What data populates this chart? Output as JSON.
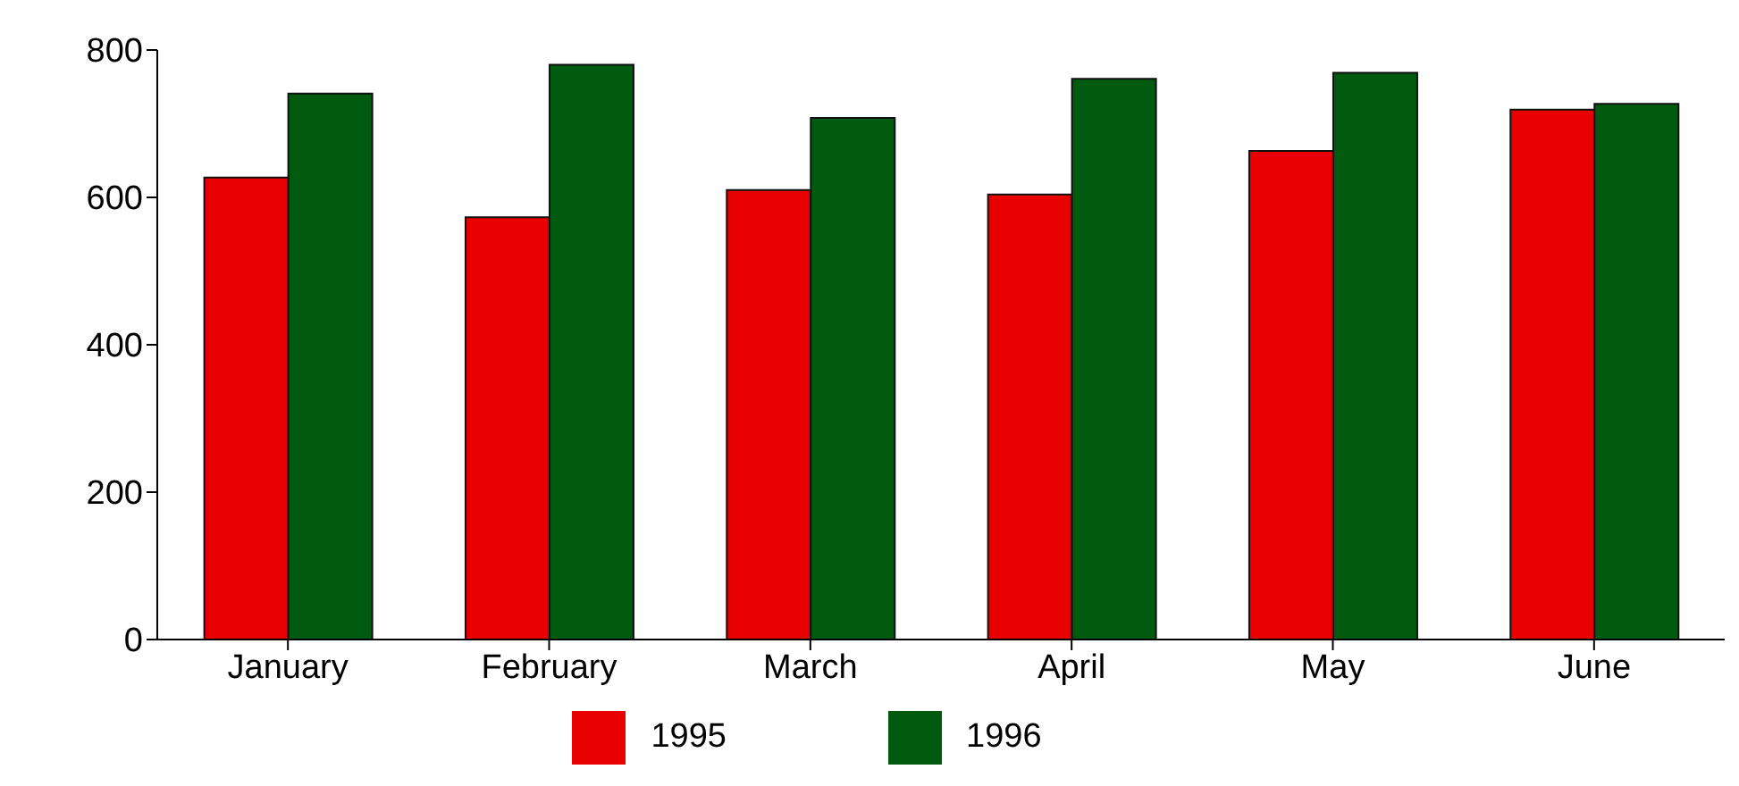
{
  "chart_data": {
    "type": "bar",
    "categories": [
      "January",
      "February",
      "March",
      "April",
      "May",
      "June"
    ],
    "series": [
      {
        "name": "1995",
        "color": "#e80000",
        "values": [
          627,
          573,
          610,
          604,
          663,
          719
        ]
      },
      {
        "name": "1996",
        "color": "#005a10",
        "values": [
          741,
          780,
          708,
          761,
          769,
          727
        ]
      }
    ],
    "ylim": [
      0,
      800
    ],
    "yticks": [
      0,
      200,
      400,
      600,
      800
    ],
    "grid": false,
    "legend": "bottom"
  }
}
